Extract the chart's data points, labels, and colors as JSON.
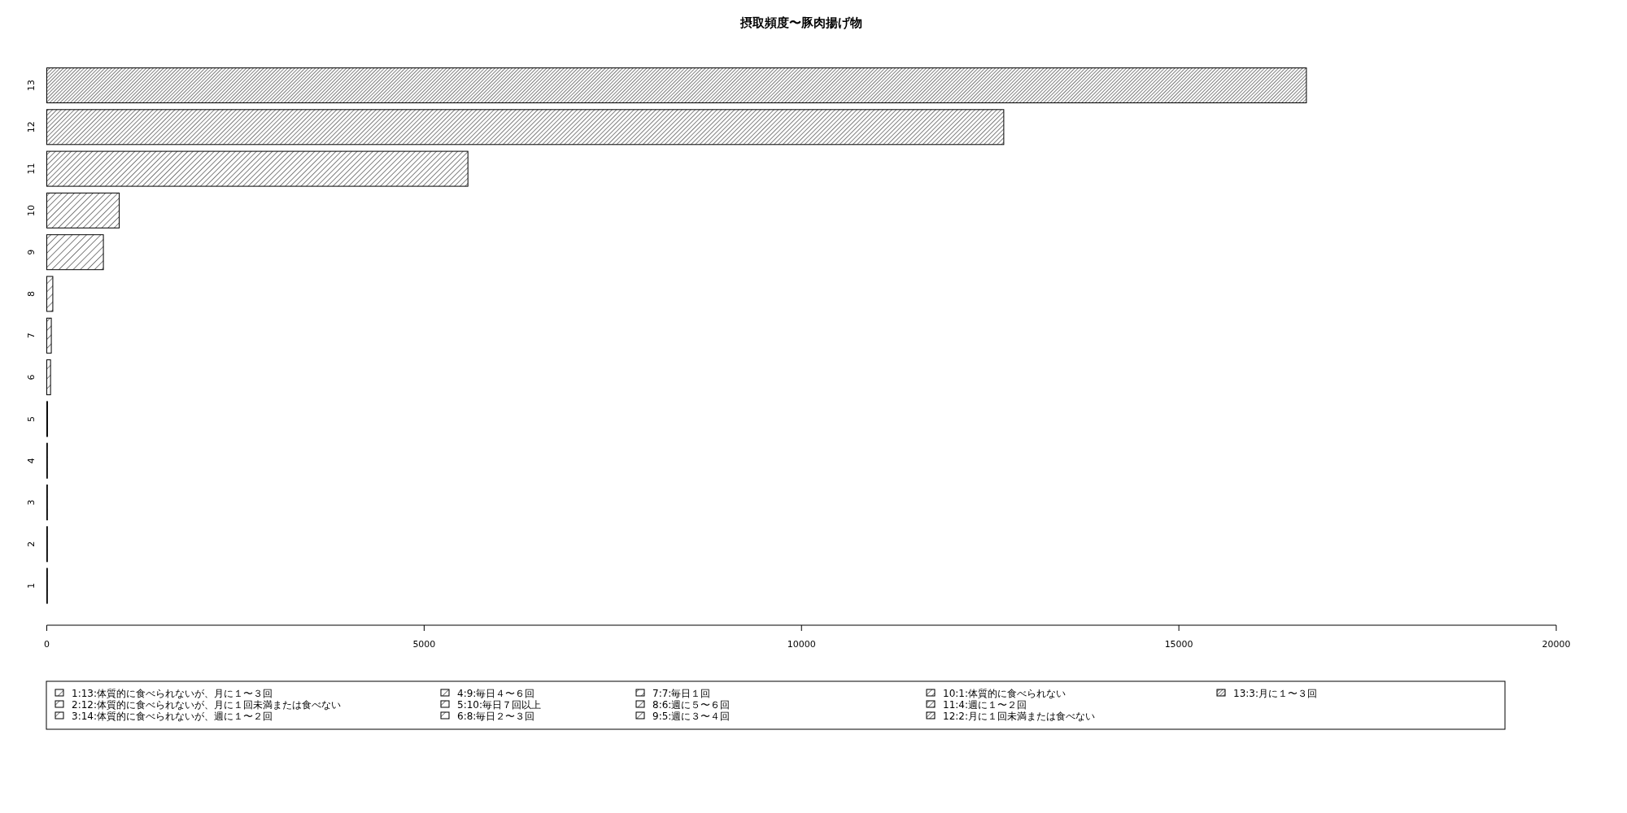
{
  "chart_data": {
    "type": "bar",
    "orientation": "horizontal",
    "title": "摂取頻度〜豚肉揚げ物",
    "categories": [
      "13",
      "12",
      "11",
      "10",
      "9",
      "8",
      "7",
      "6",
      "5",
      "4",
      "3",
      "2",
      "1"
    ],
    "values": [
      16690,
      12680,
      5580,
      960,
      750,
      80,
      60,
      50,
      10,
      0,
      0,
      0,
      0
    ],
    "color": "#000000",
    "xlim": [
      0,
      20000
    ],
    "xticks": [
      0,
      5000,
      10000,
      15000,
      20000
    ],
    "annotations": [
      "1:13:体質的に食べられないが、月に１〜３回",
      "2:12:体質的に食べられないが、月に１回未満または食べない",
      "3:14:体質的に食べられないが、週に１〜２回",
      "4:9:毎日４〜６回",
      "5:10:毎日７回以上",
      "6:8:毎日２〜３回",
      "7:7:毎日１回",
      "8:6:週に５〜６回",
      "9:5:週に３〜４回",
      "10:1:体質的に食べられない",
      "11:4:週に１〜２回",
      "12:2:月に１回未満または食べない",
      "13:3:月に１〜３回"
    ]
  }
}
